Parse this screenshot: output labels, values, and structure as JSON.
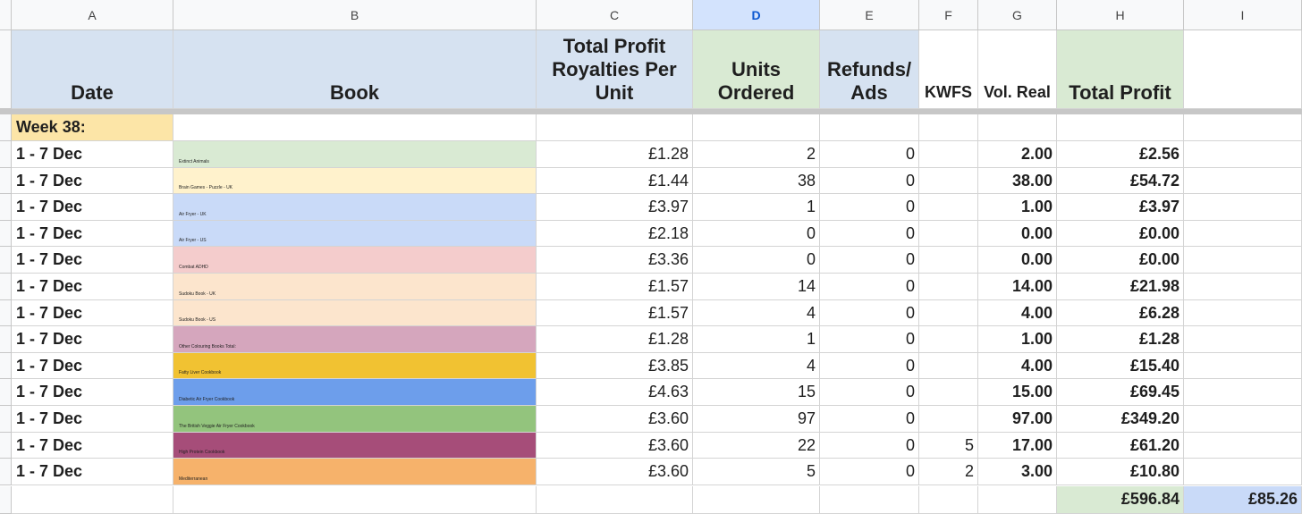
{
  "columns": [
    "A",
    "B",
    "C",
    "D",
    "E",
    "F",
    "G",
    "H",
    "I"
  ],
  "selected_column": "D",
  "headers": {
    "date": "Date",
    "book": "Book",
    "royalty": "Total Profit Royalties Per Unit",
    "units": "Units Ordered",
    "refunds": "Refunds/ Ads",
    "kwfs": "KWFS",
    "vol": "Vol. Real",
    "total": "Total Profit"
  },
  "week_label": "Week 38:",
  "rows": [
    {
      "date": "1 - 7 Dec",
      "book": "Extinct Animals",
      "book_color": "#d9ead3",
      "royalty": "£1.28",
      "units": "2",
      "refunds": "0",
      "kwfs": "",
      "vol": "2.00",
      "total": "£2.56"
    },
    {
      "date": "1 - 7 Dec",
      "book": "Brain Games - Puzzle - UK",
      "book_color": "#fff2cc",
      "royalty": "£1.44",
      "units": "38",
      "refunds": "0",
      "kwfs": "",
      "vol": "38.00",
      "total": "£54.72"
    },
    {
      "date": "1 - 7 Dec",
      "book": "Air Fryer - UK",
      "book_color": "#c9daf8",
      "royalty": "£3.97",
      "units": "1",
      "refunds": "0",
      "kwfs": "",
      "vol": "1.00",
      "total": "£3.97"
    },
    {
      "date": "1 - 7 Dec",
      "book": "Air Fryer - US",
      "book_color": "#c9daf8",
      "royalty": "£2.18",
      "units": "0",
      "refunds": "0",
      "kwfs": "",
      "vol": "0.00",
      "total": "£0.00"
    },
    {
      "date": "1 - 7 Dec",
      "book": "Combat ADHD",
      "book_color": "#f4cccc",
      "royalty": "£3.36",
      "units": "0",
      "refunds": "0",
      "kwfs": "",
      "vol": "0.00",
      "total": "£0.00"
    },
    {
      "date": "1 - 7 Dec",
      "book": "Sudoku Book - UK",
      "book_color": "#fce5cd",
      "royalty": "£1.57",
      "units": "14",
      "refunds": "0",
      "kwfs": "",
      "vol": "14.00",
      "total": "£21.98"
    },
    {
      "date": "1 - 7 Dec",
      "book": "Sudoku Book - US",
      "book_color": "#fce5cd",
      "royalty": "£1.57",
      "units": "4",
      "refunds": "0",
      "kwfs": "",
      "vol": "4.00",
      "total": "£6.28"
    },
    {
      "date": "1 - 7 Dec",
      "book": "Other Colouring Books Total:",
      "book_color": "#d5a6bd",
      "royalty": "£1.28",
      "units": "1",
      "refunds": "0",
      "kwfs": "",
      "vol": "1.00",
      "total": "£1.28"
    },
    {
      "date": "1 - 7 Dec",
      "book": "Fatty Liver Cookbook",
      "book_color": "#f1c232",
      "royalty": "£3.85",
      "units": "4",
      "refunds": "0",
      "kwfs": "",
      "vol": "4.00",
      "total": "£15.40"
    },
    {
      "date": "1 - 7 Dec",
      "book": "Diabetic Air Fryer Cookbook",
      "book_color": "#6d9eeb",
      "royalty": "£4.63",
      "units": "15",
      "refunds": "0",
      "kwfs": "",
      "vol": "15.00",
      "total": "£69.45"
    },
    {
      "date": "1 - 7 Dec",
      "book": "The British Veggie Air Fryer Cookbook",
      "book_color": "#93c47d",
      "royalty": "£3.60",
      "units": "97",
      "refunds": "0",
      "kwfs": "",
      "vol": "97.00",
      "total": "£349.20"
    },
    {
      "date": "1 - 7 Dec",
      "book": "High Protein Cookbook",
      "book_color": "#a64d79",
      "royalty": "£3.60",
      "units": "22",
      "refunds": "0",
      "kwfs": "5",
      "vol": "17.00",
      "total": "£61.20"
    },
    {
      "date": "1 - 7 Dec",
      "book": "Mediterranean",
      "book_color": "#f6b26b",
      "royalty": "£3.60",
      "units": "5",
      "refunds": "0",
      "kwfs": "2",
      "vol": "3.00",
      "total": "£10.80"
    }
  ],
  "totals": {
    "total_profit": "£596.84",
    "col_i": "£85.26"
  }
}
